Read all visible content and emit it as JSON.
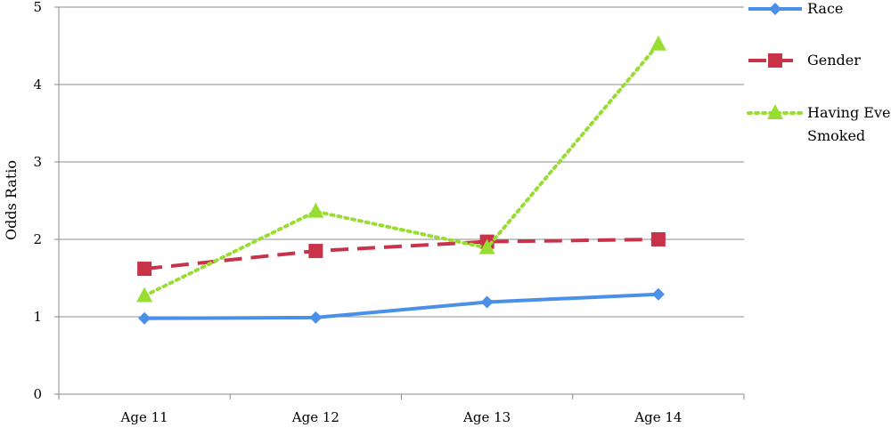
{
  "chart_data": {
    "type": "line",
    "title": "",
    "xlabel": "",
    "ylabel": "Odds Ratio",
    "ylim": [
      0,
      5
    ],
    "yticks": [
      "0",
      "1",
      "2",
      "3",
      "4",
      "5"
    ],
    "grid": "horizontal",
    "legend_position": "right",
    "categories": [
      "Age 11",
      "Age 12",
      "Age 13",
      "Age 14"
    ],
    "series": [
      {
        "name": "Race",
        "values": [
          0.98,
          0.99,
          1.19,
          1.29
        ],
        "color": "#4a8fe8",
        "line_style": "solid",
        "marker": "diamond"
      },
      {
        "name": "Gender",
        "values": [
          1.62,
          1.85,
          1.97,
          2.0
        ],
        "color": "#c8334a",
        "line_style": "dashed",
        "marker": "square"
      },
      {
        "name": "Having Ever Smoked",
        "legend_lines": [
          "Having Ever",
          "Smoked"
        ],
        "values": [
          1.27,
          2.36,
          1.89,
          4.52
        ],
        "color": "#99dd33",
        "line_style": "dotted",
        "marker": "triangle"
      }
    ]
  }
}
